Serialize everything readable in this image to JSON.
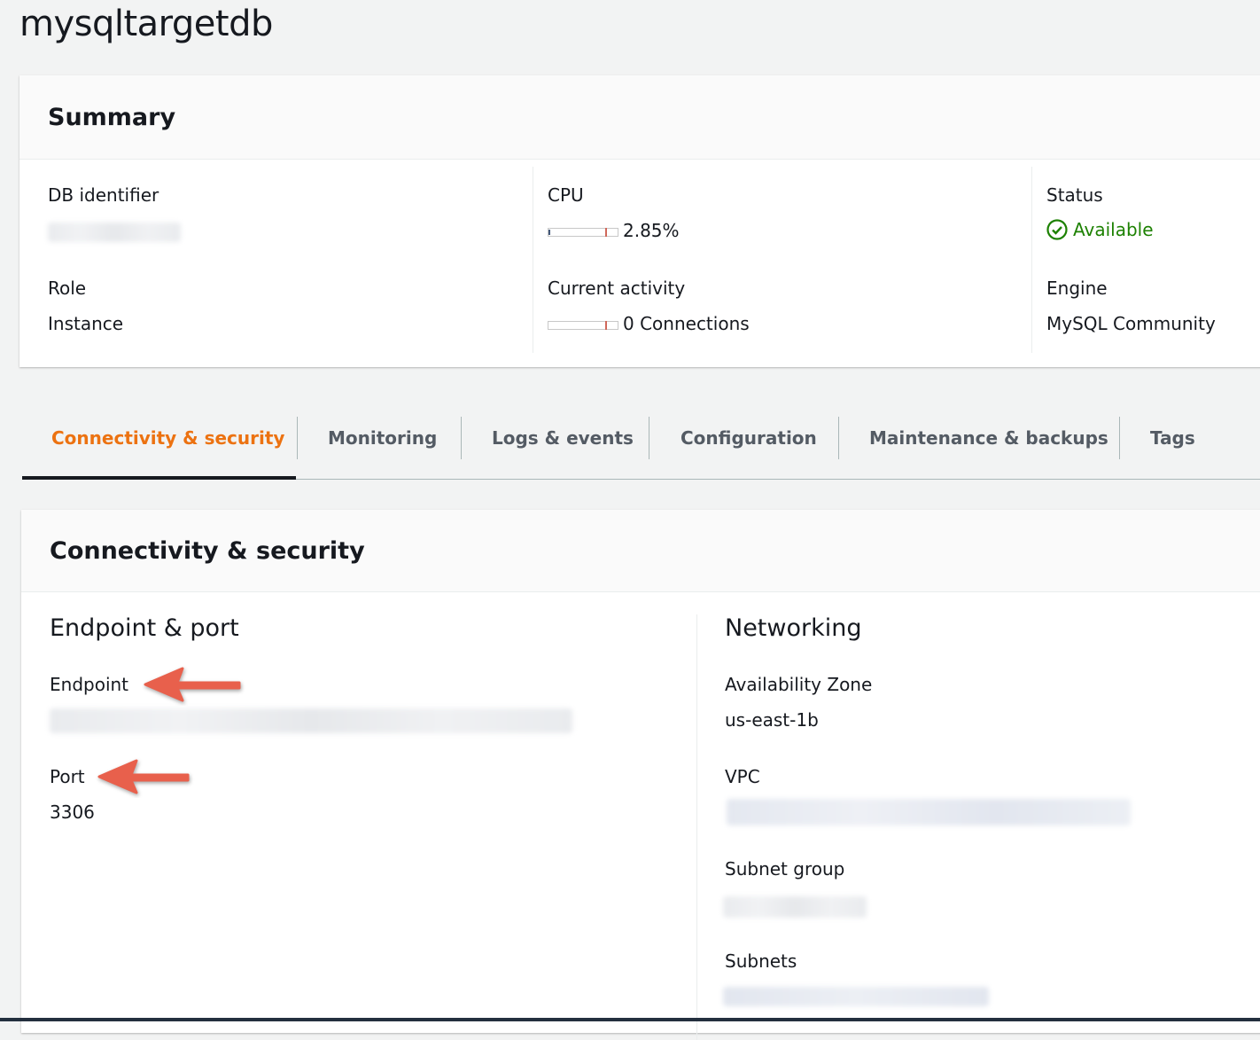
{
  "page_title": "mysqltargetdb",
  "summary": {
    "title": "Summary",
    "db_identifier_label": "DB identifier",
    "role_label": "Role",
    "role_value": "Instance",
    "cpu_label": "CPU",
    "cpu_value": "2.85%",
    "cpu_percent": 2.85,
    "activity_label": "Current activity",
    "activity_value": "0 Connections",
    "status_label": "Status",
    "status_value": "Available",
    "status_color": "#1d8102",
    "engine_label": "Engine",
    "engine_value": "MySQL Community"
  },
  "tabs": [
    {
      "label": "Connectivity & security",
      "active": true
    },
    {
      "label": "Monitoring"
    },
    {
      "label": "Logs & events"
    },
    {
      "label": "Configuration"
    },
    {
      "label": "Maintenance & backups"
    },
    {
      "label": "Tags"
    }
  ],
  "accent_color": "#ec7211",
  "connectivity": {
    "title": "Connectivity & security",
    "endpoint_section": "Endpoint & port",
    "endpoint_label": "Endpoint",
    "port_label": "Port",
    "port_value": "3306",
    "networking_section": "Networking",
    "az_label": "Availability Zone",
    "az_value": "us-east-1b",
    "vpc_label": "VPC",
    "subnet_group_label": "Subnet group",
    "subnets_label": "Subnets"
  },
  "annotation_color": "#e8604c"
}
